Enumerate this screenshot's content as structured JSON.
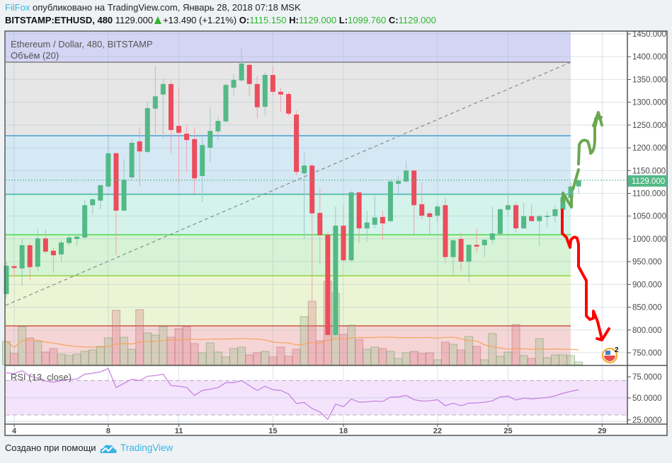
{
  "header": {
    "author": "FilFox",
    "published": "опубликовано на TradingView.com, Январь 28, 2018 07:18 MSK",
    "symbol": "BITSTAMP:ETHUSD, 480",
    "last": "1129.000",
    "change": "+13.490 (+1.21%)",
    "o_label": "O:",
    "o": "1115.150",
    "h_label": "H:",
    "h": "1129.000",
    "l_label": "L:",
    "l": "1099.760",
    "c_label": "C:",
    "c": "1129.000",
    "change_direction": "up-triangle-icon"
  },
  "legend": {
    "main": "Ethereum / Dollar, 480, BITSTAMP",
    "volume": "Объём (20)",
    "rsi": "RSI (13, close)"
  },
  "events_badge": "2",
  "footer": {
    "made_with": "Создано при помощи",
    "brand": "TradingView"
  },
  "colors": {
    "up": "#53b987",
    "down": "#eb4d5c",
    "rsi": "#c57be0",
    "volume_ma": "#f7a35c",
    "accent": "#3bb3e4"
  },
  "chart_data": {
    "type": "candlestick",
    "interval": "480",
    "price_axis": {
      "ylim": [
        725,
        1460
      ],
      "ticks": [
        "1450.000",
        "1400.000",
        "1350.000",
        "1300.000",
        "1250.000",
        "1200.000",
        "1150.000",
        "1100.000",
        "1050.000",
        "1000.000",
        "950.000",
        "900.000",
        "850.000",
        "800.000",
        "750.000"
      ],
      "last_price_label": "1129.000"
    },
    "date_axis": {
      "ticks": [
        "4",
        "8",
        "11",
        "15",
        "18",
        "22",
        "25",
        "29"
      ]
    },
    "grid": true,
    "ohlc": [
      [
        879,
        950,
        870,
        941
      ],
      [
        940,
        945,
        916,
        936
      ],
      [
        935,
        1000,
        896,
        986
      ],
      [
        986,
        992,
        910,
        938
      ],
      [
        939,
        1022,
        929,
        1001
      ],
      [
        1001,
        1021,
        967,
        972
      ],
      [
        974,
        980,
        925,
        964
      ],
      [
        966,
        997,
        950,
        992
      ],
      [
        991,
        1010,
        985,
        1003
      ],
      [
        1000,
        1010,
        985,
        1005
      ],
      [
        1003,
        1087,
        1000,
        1074
      ],
      [
        1074,
        1089,
        1055,
        1087
      ],
      [
        1084,
        1118,
        1064,
        1118
      ],
      [
        1115,
        1230,
        1110,
        1188
      ],
      [
        1188,
        1190,
        964,
        1062
      ],
      [
        1062,
        1175,
        1062,
        1130
      ],
      [
        1135,
        1219,
        1130,
        1211
      ],
      [
        1214,
        1245,
        1115,
        1192
      ],
      [
        1191,
        1301,
        1188,
        1287
      ],
      [
        1286,
        1379,
        1230,
        1313
      ],
      [
        1317,
        1352,
        1220,
        1340
      ],
      [
        1340,
        1348,
        1188,
        1239
      ],
      [
        1248,
        1334,
        1123,
        1233
      ],
      [
        1231,
        1250,
        1146,
        1217
      ],
      [
        1219,
        1245,
        1099,
        1133
      ],
      [
        1138,
        1223,
        1081,
        1206
      ],
      [
        1200,
        1289,
        1169,
        1237
      ],
      [
        1236,
        1268,
        1217,
        1259
      ],
      [
        1258,
        1340,
        1255,
        1338
      ],
      [
        1332,
        1361,
        1315,
        1349
      ],
      [
        1348,
        1419,
        1345,
        1385
      ],
      [
        1382,
        1388,
        1313,
        1340
      ],
      [
        1340,
        1358,
        1265,
        1289
      ],
      [
        1290,
        1366,
        1271,
        1360
      ],
      [
        1360,
        1379,
        1315,
        1323
      ],
      [
        1323,
        1332,
        1279,
        1317
      ],
      [
        1318,
        1323,
        1271,
        1275
      ],
      [
        1273,
        1281,
        1140,
        1147
      ],
      [
        1144,
        1189,
        1000,
        1161
      ],
      [
        1161,
        1165,
        862,
        1056
      ],
      [
        1057,
        1110,
        944,
        1008
      ],
      [
        1009,
        1015,
        785,
        789
      ],
      [
        789,
        1071,
        785,
        1029
      ],
      [
        1029,
        1073,
        950,
        953
      ],
      [
        953,
        1105,
        950,
        1102
      ],
      [
        1102,
        1104,
        991,
        1023
      ],
      [
        1023,
        1061,
        994,
        1036
      ],
      [
        1031,
        1095,
        1023,
        1047
      ],
      [
        1048,
        1061,
        997,
        1034
      ],
      [
        1039,
        1129,
        1036,
        1126
      ],
      [
        1121,
        1138,
        1099,
        1127
      ],
      [
        1126,
        1171,
        1124,
        1150
      ],
      [
        1150,
        1152,
        1011,
        1074
      ],
      [
        1076,
        1124,
        1043,
        1051
      ],
      [
        1056,
        1061,
        1011,
        1048
      ],
      [
        1051,
        1077,
        1035,
        1071
      ],
      [
        1074,
        1091,
        946,
        960
      ],
      [
        960,
        1000,
        918,
        997
      ],
      [
        1000,
        1014,
        930,
        950
      ],
      [
        950,
        987,
        905,
        987
      ],
      [
        987,
        1022,
        970,
        983
      ],
      [
        986,
        998,
        960,
        998
      ],
      [
        998,
        1070,
        989,
        1012
      ],
      [
        1011,
        1067,
        1005,
        1065
      ],
      [
        1064,
        1106,
        1051,
        1074
      ],
      [
        1074,
        1080,
        1014,
        1023
      ],
      [
        1023,
        1079,
        1023,
        1050
      ],
      [
        1050,
        1076,
        1039,
        1039
      ],
      [
        1039,
        1054,
        984,
        1050
      ],
      [
        1048,
        1061,
        1025,
        1051
      ],
      [
        1050,
        1074,
        1036,
        1065
      ],
      [
        1064,
        1092,
        1043,
        1092
      ],
      [
        1090,
        1125,
        1082,
        1115
      ],
      [
        1115.15,
        1129,
        1099.76,
        1129
      ]
    ],
    "volume_relative": [
      33,
      16,
      54,
      38,
      33,
      18,
      23,
      15,
      13,
      15,
      19,
      21,
      26,
      38,
      77,
      39,
      22,
      78,
      45,
      42,
      54,
      39,
      51,
      54,
      30,
      17,
      31,
      18,
      11,
      23,
      25,
      14,
      17,
      19,
      11,
      25,
      12,
      22,
      68,
      90,
      34,
      118,
      101,
      43,
      56,
      36,
      22,
      25,
      23,
      19,
      9,
      17,
      19,
      16,
      17,
      7,
      32,
      29,
      21,
      40,
      26,
      7,
      44,
      12,
      18,
      57,
      13,
      9,
      37,
      10,
      14,
      14,
      13,
      4
    ],
    "volume_ma_period": 20,
    "rsi": {
      "period": 13,
      "ylim": [
        20,
        90
      ],
      "ticks": [
        "75.0000",
        "50.0000",
        "25.0000"
      ],
      "bands": [
        70,
        30
      ],
      "values": [
        79,
        78,
        81.5,
        75,
        73,
        69.5,
        68,
        70,
        71.6,
        71.6,
        77.4,
        78.5,
        80,
        84,
        61.8,
        66.7,
        71.6,
        70,
        75,
        75.8,
        77.4,
        64.2,
        63.4,
        61.8,
        52.7,
        58.5,
        60,
        61.8,
        67.5,
        67.5,
        70,
        64.2,
        58.5,
        63.4,
        59.3,
        58.5,
        54.4,
        43.4,
        44.5,
        37.4,
        33.6,
        24.8,
        42.6,
        39.6,
        48.6,
        44.8,
        45.3,
        46.2,
        45.6,
        50.8,
        51,
        52.7,
        47.8,
        46.2,
        46.4,
        47.8,
        40.7,
        43.7,
        40.7,
        43.7,
        44,
        44.8,
        46.4,
        51,
        51.9,
        47.3,
        49.5,
        48.6,
        49.5,
        50.3,
        52.2,
        55.2,
        57.4,
        59.3
      ]
    },
    "fib_levels": [
      {
        "price": 1388,
        "color": "#777777",
        "fill_above": "#d4d4f4"
      },
      {
        "price": 1226.5,
        "color": "#2a8fcf",
        "fill_above": "#e6e6e6"
      },
      {
        "price": 1097.7,
        "color": "#2bb59a",
        "fill_above": "#d5e9f5"
      },
      {
        "price": 1009,
        "color": "#2bd12b",
        "fill_above": "#d4f3ea"
      },
      {
        "price": 919,
        "color": "#7fcf1a",
        "fill_above": "#d6f3d5"
      },
      {
        "price": 809,
        "color": "#c0392b",
        "fill_above": "#ebf5d5",
        "fill_below": "#f5d5d5"
      }
    ],
    "trend_line": {
      "from_price": 854,
      "to_price": 1388,
      "style": "dashed"
    },
    "annotations": [
      {
        "type": "hand-drawn-arrow",
        "direction": "up",
        "color": "#6aa84f"
      },
      {
        "type": "hand-drawn-arrow",
        "direction": "down",
        "color": "#ff0000"
      }
    ]
  }
}
